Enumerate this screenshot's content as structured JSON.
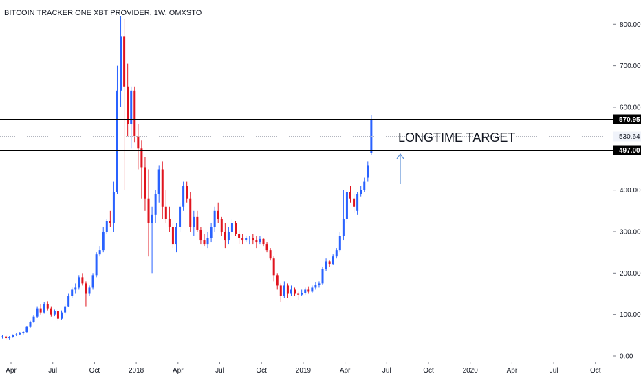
{
  "chart_data": {
    "type": "candlestick",
    "title": "BITCOIN TRACKER ONE XBT PROVIDER, 1W, OMXSTO",
    "y_ticks": [
      "800.00",
      "700.00",
      "600.00",
      "400.00",
      "300.00",
      "200.00",
      "100.00",
      "0.00"
    ],
    "x_ticks": [
      "Apr",
      "Jul",
      "Oct",
      "2018",
      "Apr",
      "Jul",
      "Oct",
      "2019",
      "Apr",
      "Jul",
      "Oct",
      "2020",
      "Apr",
      "Jul",
      "Oct"
    ],
    "price_lines": [
      {
        "label": "570.95",
        "value": 570.95,
        "style": "solid"
      },
      {
        "label": "530.64",
        "value": 530.64,
        "style": "dotted"
      },
      {
        "label": "497.00",
        "value": 497.0,
        "style": "solid"
      }
    ],
    "annotation": "LONGTIME TARGET",
    "colors": {
      "up": "#2962ff",
      "down": "#e0141e",
      "line": "#000000",
      "arrow": "#5b8fd6"
    },
    "candles": [
      [
        45,
        50,
        42,
        47
      ],
      [
        47,
        50,
        40,
        43
      ],
      [
        43,
        48,
        40,
        46
      ],
      [
        46,
        52,
        44,
        50
      ],
      [
        50,
        55,
        48,
        52
      ],
      [
        52,
        58,
        50,
        55
      ],
      [
        55,
        60,
        52,
        58
      ],
      [
        58,
        72,
        56,
        70
      ],
      [
        70,
        85,
        68,
        82
      ],
      [
        82,
        98,
        80,
        95
      ],
      [
        95,
        120,
        92,
        115
      ],
      [
        115,
        125,
        100,
        105
      ],
      [
        105,
        130,
        102,
        125
      ],
      [
        125,
        132,
        110,
        115
      ],
      [
        115,
        120,
        95,
        100
      ],
      [
        100,
        112,
        96,
        108
      ],
      [
        108,
        112,
        85,
        90
      ],
      [
        90,
        110,
        88,
        105
      ],
      [
        105,
        125,
        100,
        120
      ],
      [
        120,
        150,
        118,
        145
      ],
      [
        145,
        165,
        140,
        160
      ],
      [
        160,
        175,
        150,
        165
      ],
      [
        165,
        195,
        160,
        190
      ],
      [
        190,
        200,
        170,
        175
      ],
      [
        175,
        180,
        120,
        150
      ],
      [
        150,
        170,
        145,
        165
      ],
      [
        165,
        200,
        160,
        195
      ],
      [
        195,
        250,
        190,
        245
      ],
      [
        245,
        265,
        240,
        255
      ],
      [
        255,
        310,
        250,
        300
      ],
      [
        300,
        330,
        295,
        325
      ],
      [
        325,
        350,
        310,
        320
      ],
      [
        320,
        420,
        300,
        395
      ],
      [
        395,
        700,
        390,
        640
      ],
      [
        640,
        820,
        600,
        770
      ],
      [
        770,
        812,
        400,
        650
      ],
      [
        650,
        705,
        530,
        560
      ],
      [
        560,
        650,
        500,
        640
      ],
      [
        640,
        650,
        515,
        530
      ],
      [
        530,
        560,
        450,
        500
      ],
      [
        500,
        520,
        380,
        455
      ],
      [
        455,
        480,
        350,
        380
      ],
      [
        380,
        450,
        240,
        320
      ],
      [
        320,
        360,
        200,
        340
      ],
      [
        340,
        400,
        320,
        390
      ],
      [
        390,
        460,
        370,
        450
      ],
      [
        450,
        470,
        330,
        360
      ],
      [
        360,
        400,
        320,
        330
      ],
      [
        330,
        360,
        300,
        310
      ],
      [
        310,
        320,
        260,
        270
      ],
      [
        270,
        320,
        250,
        310
      ],
      [
        310,
        370,
        300,
        360
      ],
      [
        360,
        420,
        350,
        410
      ],
      [
        410,
        420,
        370,
        380
      ],
      [
        380,
        395,
        300,
        310
      ],
      [
        310,
        350,
        290,
        335
      ],
      [
        335,
        350,
        300,
        305
      ],
      [
        305,
        310,
        270,
        280
      ],
      [
        280,
        295,
        265,
        270
      ],
      [
        270,
        300,
        260,
        285
      ],
      [
        285,
        320,
        275,
        310
      ],
      [
        310,
        360,
        300,
        350
      ],
      [
        350,
        370,
        320,
        330
      ],
      [
        330,
        335,
        290,
        300
      ],
      [
        300,
        320,
        260,
        280
      ],
      [
        280,
        310,
        270,
        300
      ],
      [
        300,
        330,
        290,
        320
      ],
      [
        320,
        325,
        290,
        295
      ],
      [
        295,
        305,
        270,
        285
      ],
      [
        285,
        295,
        270,
        280
      ],
      [
        280,
        290,
        275,
        285
      ],
      [
        285,
        290,
        270,
        285
      ],
      [
        285,
        295,
        270,
        280
      ],
      [
        280,
        290,
        260,
        275
      ],
      [
        275,
        290,
        270,
        282
      ],
      [
        282,
        285,
        265,
        270
      ],
      [
        270,
        275,
        250,
        255
      ],
      [
        255,
        260,
        230,
        235
      ],
      [
        235,
        240,
        180,
        195
      ],
      [
        195,
        200,
        160,
        170
      ],
      [
        170,
        175,
        130,
        145
      ],
      [
        145,
        180,
        140,
        170
      ],
      [
        170,
        175,
        140,
        150
      ],
      [
        150,
        170,
        145,
        160
      ],
      [
        160,
        165,
        145,
        150
      ],
      [
        150,
        155,
        135,
        148
      ],
      [
        148,
        160,
        145,
        152
      ],
      [
        152,
        165,
        148,
        160
      ],
      [
        160,
        168,
        150,
        155
      ],
      [
        155,
        170,
        152,
        165
      ],
      [
        165,
        178,
        160,
        172
      ],
      [
        172,
        180,
        165,
        175
      ],
      [
        175,
        215,
        172,
        210
      ],
      [
        210,
        235,
        205,
        228
      ],
      [
        228,
        230,
        215,
        222
      ],
      [
        222,
        245,
        220,
        240
      ],
      [
        240,
        260,
        235,
        255
      ],
      [
        255,
        300,
        250,
        290
      ],
      [
        290,
        400,
        280,
        330
      ],
      [
        330,
        400,
        320,
        395
      ],
      [
        395,
        410,
        370,
        380
      ],
      [
        380,
        390,
        345,
        360
      ],
      [
        350,
        395,
        340,
        390
      ],
      [
        390,
        410,
        385,
        400
      ],
      [
        400,
        430,
        395,
        420
      ],
      [
        430,
        470,
        420,
        460
      ],
      [
        490,
        580,
        485,
        570
      ]
    ]
  }
}
